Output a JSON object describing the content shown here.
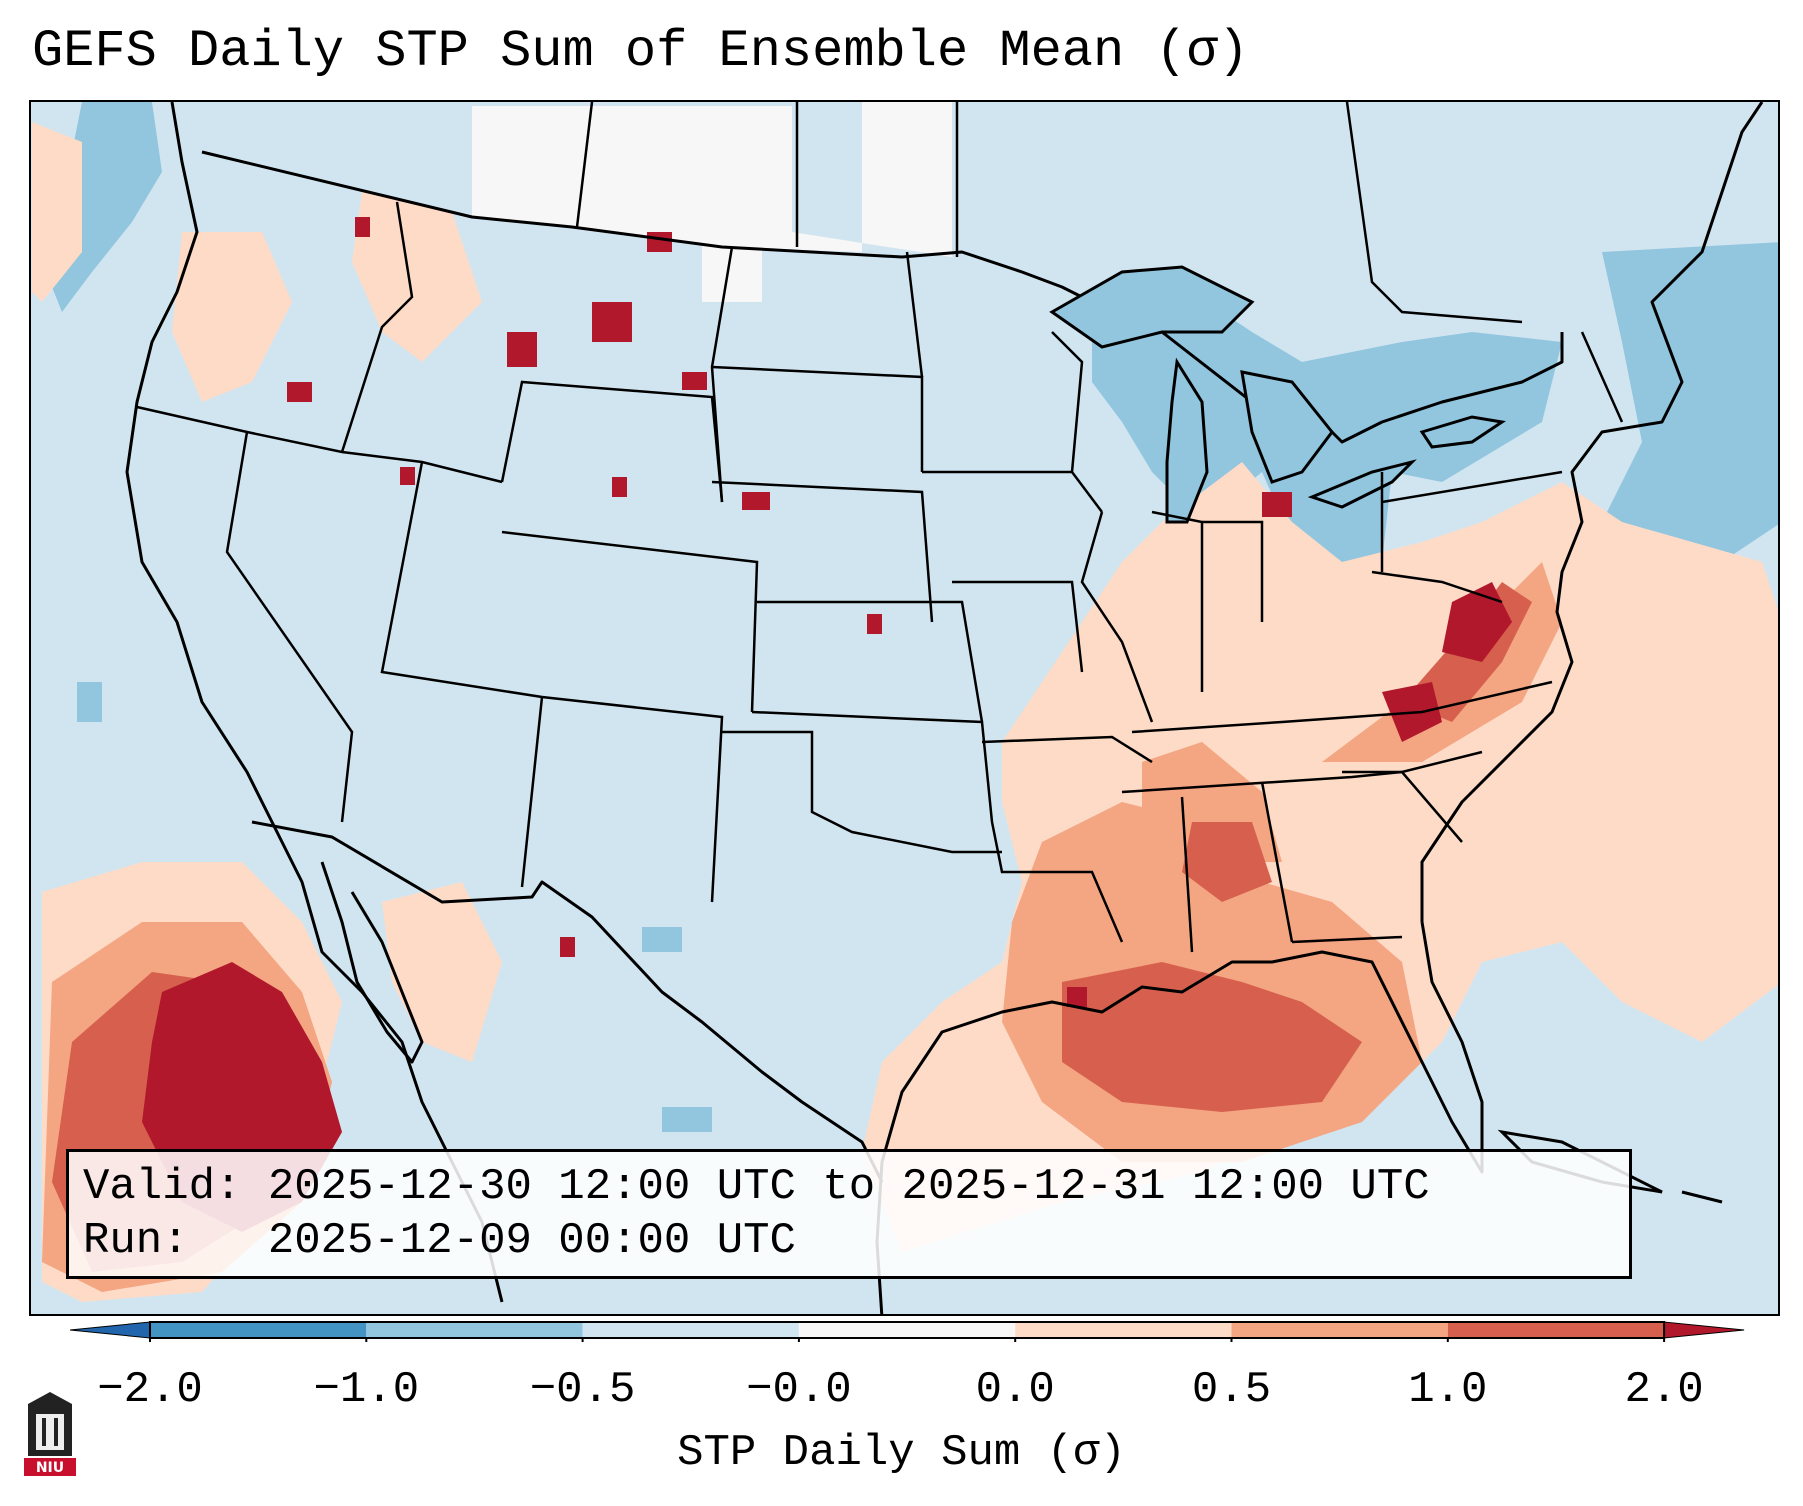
{
  "title": "GEFS Daily STP Sum of Ensemble Mean (σ)",
  "info": {
    "valid_label": "Valid:",
    "valid_text": "2025-12-30 12:00 UTC to 2025-12-31 12:00 UTC",
    "run_label": "Run:",
    "run_text": "2025-12-09 00:00 UTC"
  },
  "colorbar": {
    "label": "STP Daily Sum (σ)",
    "ticks": [
      "−2.0",
      "−1.0",
      "−0.5",
      "−0.0",
      "0.0",
      "0.5",
      "1.0",
      "2.0"
    ],
    "bins": [
      {
        "from": -2.0,
        "to": -1.0,
        "color": "#4393c3"
      },
      {
        "from": -1.0,
        "to": -0.5,
        "color": "#92c5de"
      },
      {
        "from": -0.5,
        "to": -0.0,
        "color": "#d1e5f0"
      },
      {
        "from": -0.0,
        "to": 0.0,
        "color": "#f7f7f7"
      },
      {
        "from": 0.0,
        "to": 0.5,
        "color": "#fddbc7"
      },
      {
        "from": 0.5,
        "to": 1.0,
        "color": "#f4a582"
      },
      {
        "from": 1.0,
        "to": 2.0,
        "color": "#d6604d"
      }
    ],
    "under_color": "#2166ac",
    "over_color": "#b2182b"
  },
  "map": {
    "background_color": "#d1e5f0",
    "outline_color": "#000000",
    "domain": "CONUS"
  },
  "logo": {
    "text": "NIU",
    "color": "#c8102e"
  }
}
